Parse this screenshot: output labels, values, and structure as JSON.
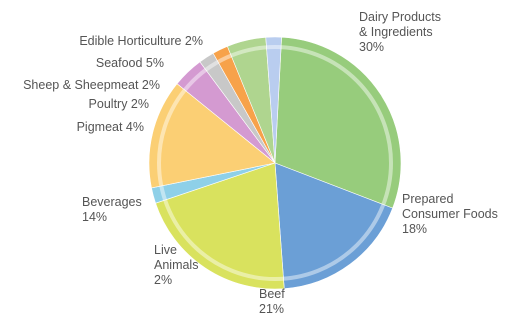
{
  "chart_data": {
    "type": "pie",
    "title": "",
    "unit": "%",
    "slices": [
      {
        "label": [
          "Dairy Products",
          "& Ingredients"
        ],
        "pct_text": "30%",
        "value": 30,
        "color": "#97cc7c"
      },
      {
        "label": [
          "Prepared",
          "Consumer Foods"
        ],
        "pct_text": "18%",
        "value": 18,
        "color": "#6b9fd6"
      },
      {
        "label": [
          "Beef"
        ],
        "pct_text": "21%",
        "value": 21,
        "color": "#d9e25e"
      },
      {
        "label": [
          "Live",
          "Animals"
        ],
        "pct_text": "2%",
        "value": 2,
        "color": "#8ed0e8"
      },
      {
        "label": [
          "Beverages"
        ],
        "pct_text": "14%",
        "value": 14,
        "color": "#fbcf74"
      },
      {
        "label": [
          "Pigmeat 4%"
        ],
        "pct_text": "",
        "value": 4,
        "color": "#d49ad1"
      },
      {
        "label": [
          "Poultry 2%"
        ],
        "pct_text": "",
        "value": 2,
        "color": "#c8c8c8"
      },
      {
        "label": [
          "Sheep & Sheepmeat 2%"
        ],
        "pct_text": "",
        "value": 2,
        "color": "#f7a24a"
      },
      {
        "label": [
          "Seafood 5%"
        ],
        "pct_text": "",
        "value": 5,
        "color": "#afd58f"
      },
      {
        "label": [
          "Edible Horticulture 2%"
        ],
        "pct_text": "",
        "value": 2,
        "color": "#b9cdef"
      }
    ]
  }
}
